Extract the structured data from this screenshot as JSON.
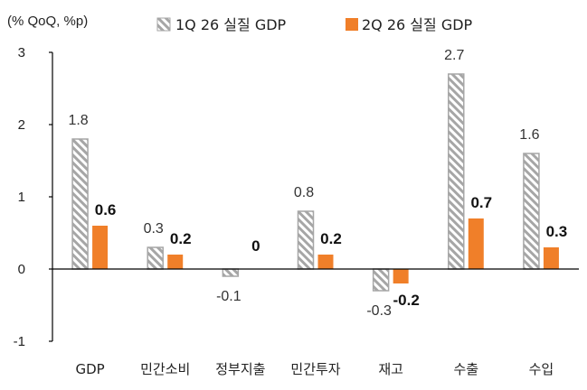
{
  "chart_data": {
    "type": "bar",
    "unit_label": "(% QoQ, %p)",
    "categories": [
      "GDP",
      "민간소비",
      "정부지출",
      "민간투자",
      "재고",
      "수출",
      "수입"
    ],
    "series": [
      {
        "name": "1Q 26 실질 GDP",
        "values": [
          1.8,
          0.3,
          -0.1,
          0.8,
          -0.3,
          2.7,
          1.6
        ],
        "labels": [
          "1.8",
          "0.3",
          "-0.1",
          "0.8",
          "-0.3",
          "2.7",
          "1.6"
        ],
        "color": "#a6a6a6",
        "pattern": "hatched"
      },
      {
        "name": "2Q 26 실질 GDP",
        "values": [
          0.6,
          0.2,
          0,
          0.2,
          -0.2,
          0.7,
          0.3
        ],
        "labels": [
          "0.6",
          "0.2",
          "0",
          "0.2",
          "-0.2",
          "0.7",
          "0.3"
        ],
        "color": "#f07f29",
        "pattern": "solid"
      }
    ],
    "ylim": [
      -1,
      3
    ],
    "yticks": [
      "-1",
      "0",
      "1",
      "2",
      "3"
    ],
    "grid": false,
    "legend_position": "top"
  }
}
